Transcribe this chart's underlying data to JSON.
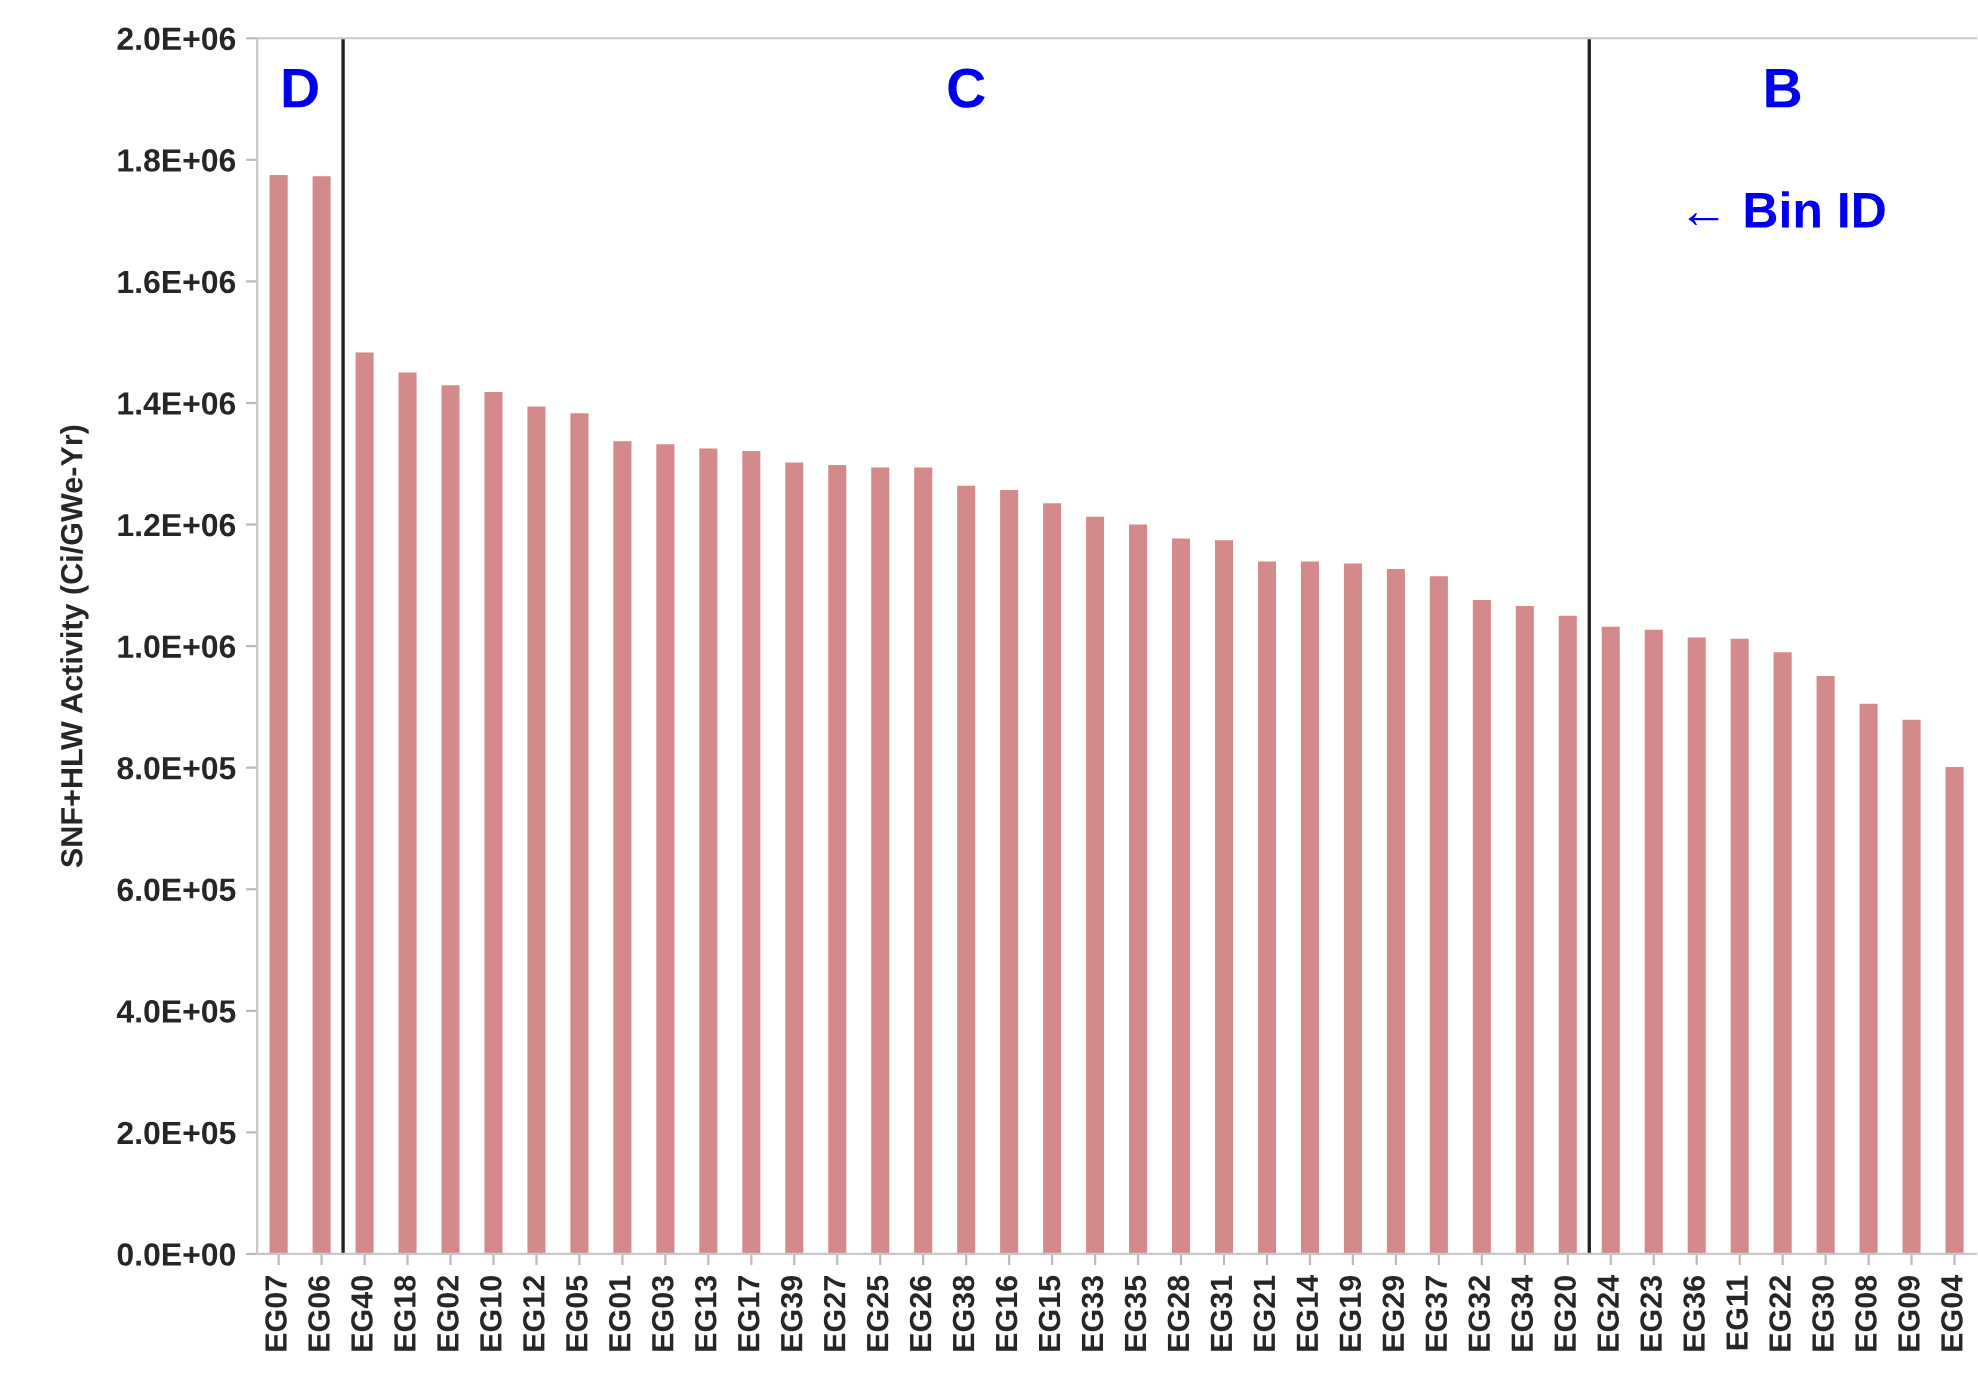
{
  "chart_data": {
    "type": "bar",
    "ylabel": "SNF+HLW Activity (Ci/GWe-Yr)",
    "categories": [
      "EG07",
      "EG06",
      "EG40",
      "EG18",
      "EG02",
      "EG10",
      "EG12",
      "EG05",
      "EG01",
      "EG03",
      "EG13",
      "EG17",
      "EG39",
      "EG27",
      "EG25",
      "EG26",
      "EG38",
      "EG16",
      "EG15",
      "EG33",
      "EG35",
      "EG28",
      "EG31",
      "EG21",
      "EG14",
      "EG19",
      "EG29",
      "EG37",
      "EG32",
      "EG34",
      "EG20",
      "EG24",
      "EG23",
      "EG36",
      "EG11",
      "EG22",
      "EG30",
      "EG08",
      "EG09",
      "EG04"
    ],
    "values": [
      1775000,
      1773000,
      1483000,
      1450000,
      1429000,
      1418000,
      1394000,
      1383000,
      1337000,
      1332000,
      1325000,
      1321000,
      1302000,
      1298000,
      1294000,
      1294000,
      1264000,
      1257000,
      1235000,
      1213000,
      1200000,
      1177000,
      1174000,
      1139000,
      1139000,
      1136000,
      1127000,
      1115000,
      1076000,
      1066000,
      1050000,
      1032000,
      1027000,
      1014000,
      1012000,
      990000,
      951000,
      905000,
      879000,
      801000
    ],
    "color": "#d4898a",
    "ylim": [
      0,
      2000000
    ],
    "yticks": [
      {
        "value": 0,
        "label": "0.0E+00"
      },
      {
        "value": 200000,
        "label": "2.0E+05"
      },
      {
        "value": 400000,
        "label": "4.0E+05"
      },
      {
        "value": 600000,
        "label": "6.0E+05"
      },
      {
        "value": 800000,
        "label": "8.0E+05"
      },
      {
        "value": 1000000,
        "label": "1.0E+06"
      },
      {
        "value": 1200000,
        "label": "1.2E+06"
      },
      {
        "value": 1400000,
        "label": "1.4E+06"
      },
      {
        "value": 1600000,
        "label": "1.6E+06"
      },
      {
        "value": 1800000,
        "label": "1.8E+06"
      },
      {
        "value": 2000000,
        "label": "2.0E+06"
      }
    ],
    "annotations": [
      "D",
      "C",
      "B",
      "← Bin ID"
    ],
    "grid": false
  }
}
